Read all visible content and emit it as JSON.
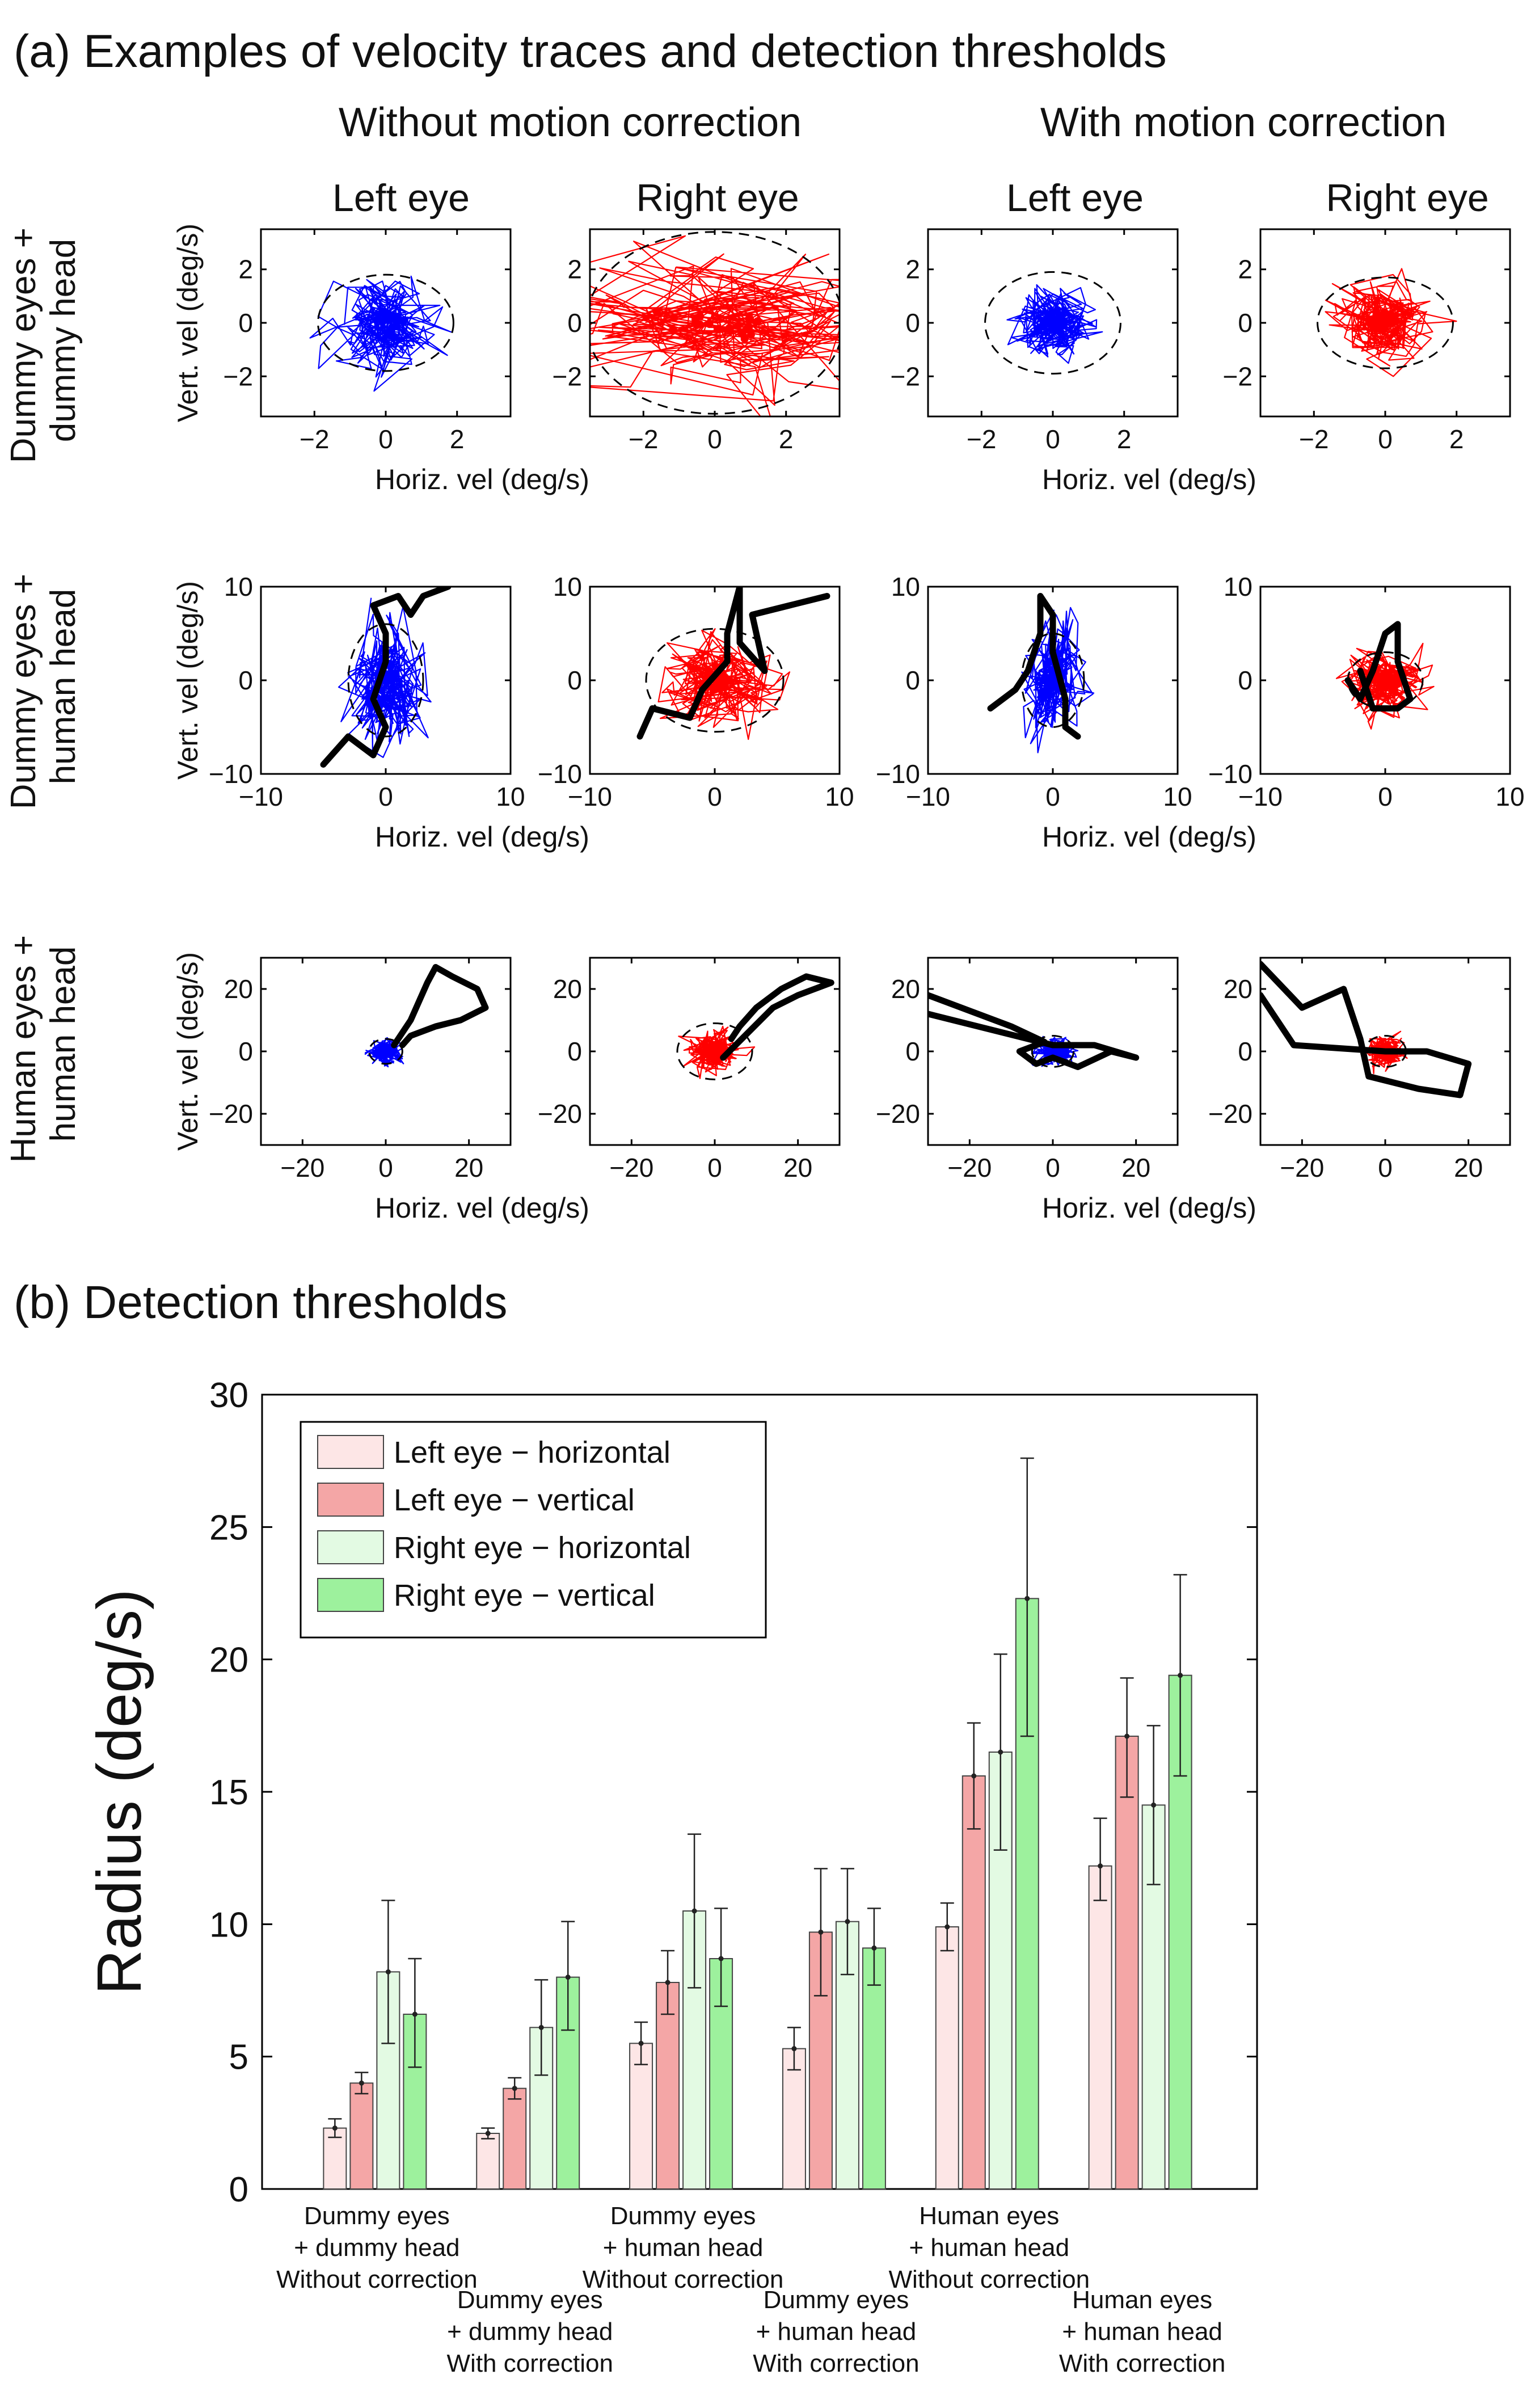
{
  "panel_a": {
    "title": "(a) Examples of velocity traces and detection thresholds",
    "column_groups": [
      "Without motion correction",
      "With motion correction"
    ],
    "eye_labels": [
      "Left eye",
      "Right eye",
      "Left eye",
      "Right eye"
    ],
    "row_labels": [
      [
        "Dummy eyes +",
        "dummy head"
      ],
      [
        "Dummy eyes +",
        "human head"
      ],
      [
        "Human eyes +",
        "human head"
      ]
    ],
    "ylabel": "Vert. vel (deg/s)",
    "xlabel": "Horiz. vel (deg/s)",
    "colors": {
      "left_eye": "#0000ff",
      "right_eye": "#ff0000",
      "head_trace": "#000000"
    }
  },
  "panel_b": {
    "title": "(b) Detection thresholds"
  },
  "chart_data": [
    {
      "type": "scatter",
      "title": "Dummy eyes + dummy head",
      "xlabel": "Horiz. vel (deg/s)",
      "ylabel": "Vert. vel (deg/s)",
      "xlim": [
        -3.5,
        3.5
      ],
      "ylim": [
        -3.5,
        3.5
      ],
      "xticks": [
        -2,
        0,
        2
      ],
      "yticks": [
        -2,
        0,
        2
      ],
      "panels": [
        {
          "group": "Without motion correction",
          "eye": "Left eye",
          "color": "#0000ff",
          "threshold_radius": [
            1.9,
            1.8
          ],
          "velocity_spread": [
            0.55,
            0.7
          ],
          "head_trace": []
        },
        {
          "group": "Without motion correction",
          "eye": "Right eye",
          "color": "#ff0000",
          "threshold_radius": [
            3.6,
            3.4
          ],
          "velocity_spread": [
            2.2,
            1.0
          ],
          "head_trace": []
        },
        {
          "group": "With motion correction",
          "eye": "Left eye",
          "color": "#0000ff",
          "threshold_radius": [
            1.9,
            1.9
          ],
          "velocity_spread": [
            0.45,
            0.55
          ],
          "head_trace": []
        },
        {
          "group": "With motion correction",
          "eye": "Right eye",
          "color": "#ff0000",
          "threshold_radius": [
            1.9,
            1.7
          ],
          "velocity_spread": [
            0.55,
            0.6
          ],
          "head_trace": []
        }
      ]
    },
    {
      "type": "scatter",
      "title": "Dummy eyes + human head",
      "xlabel": "Horiz. vel (deg/s)",
      "ylabel": "Vert. vel (deg/s)",
      "xlim": [
        -10,
        10
      ],
      "ylim": [
        -10,
        10
      ],
      "xticks": [
        -10,
        0,
        10
      ],
      "yticks": [
        -10,
        0,
        10
      ],
      "panels": [
        {
          "group": "Without motion correction",
          "eye": "Left eye",
          "color": "#0000ff",
          "threshold_radius": [
            3.0,
            6.0
          ],
          "velocity_spread": [
            1.3,
            2.6
          ],
          "head_trace": [
            [
              -5,
              -9
            ],
            [
              -3,
              -6
            ],
            [
              -1,
              -8
            ],
            [
              0,
              -5
            ],
            [
              -1,
              -2
            ],
            [
              0,
              2
            ],
            [
              0,
              5
            ],
            [
              -1,
              8
            ],
            [
              1,
              9
            ],
            [
              2,
              7
            ],
            [
              3,
              9
            ],
            [
              5,
              10
            ]
          ]
        },
        {
          "group": "Without motion correction",
          "eye": "Right eye",
          "color": "#ff0000",
          "threshold_radius": [
            5.5,
            5.5
          ],
          "velocity_spread": [
            1.8,
            1.8
          ],
          "head_trace": [
            [
              -6,
              -6
            ],
            [
              -5,
              -3
            ],
            [
              -2,
              -4
            ],
            [
              -1,
              -1
            ],
            [
              1,
              2
            ],
            [
              1,
              5
            ],
            [
              2,
              10
            ],
            [
              2,
              4
            ],
            [
              4,
              1
            ],
            [
              3,
              7
            ],
            [
              6,
              8
            ],
            [
              9,
              9
            ]
          ]
        },
        {
          "group": "With motion correction",
          "eye": "Left eye",
          "color": "#0000ff",
          "threshold_radius": [
            2.5,
            5.0
          ],
          "velocity_spread": [
            0.9,
            2.2
          ],
          "head_trace": [
            [
              -5,
              -3
            ],
            [
              -3,
              -1
            ],
            [
              -2,
              1
            ],
            [
              -1,
              5
            ],
            [
              -1,
              9
            ],
            [
              0,
              7
            ],
            [
              0,
              3
            ],
            [
              1,
              -2
            ],
            [
              1,
              -5
            ],
            [
              2,
              -6
            ]
          ]
        },
        {
          "group": "With motion correction",
          "eye": "Right eye",
          "color": "#ff0000",
          "threshold_radius": [
            3.0,
            3.0
          ],
          "velocity_spread": [
            1.3,
            1.3
          ],
          "head_trace": [
            [
              -3,
              0
            ],
            [
              -2,
              -2
            ],
            [
              -1,
              1
            ],
            [
              0,
              5
            ],
            [
              1,
              6
            ],
            [
              1,
              2
            ],
            [
              2,
              -2
            ],
            [
              1,
              -3
            ],
            [
              -1,
              -3
            ],
            [
              -2,
              1
            ]
          ]
        }
      ]
    },
    {
      "type": "scatter",
      "title": "Human eyes + human head",
      "xlabel": "Horiz. vel (deg/s)",
      "ylabel": "Vert. vel (deg/s)",
      "xlim": [
        -30,
        30
      ],
      "ylim": [
        -30,
        30
      ],
      "xticks": [
        -20,
        0,
        20
      ],
      "yticks": [
        -20,
        0,
        20
      ],
      "panels": [
        {
          "group": "Without motion correction",
          "eye": "Left eye",
          "color": "#0000ff",
          "threshold_radius": [
            4.0,
            4.0
          ],
          "velocity_spread": [
            1.6,
            1.6
          ],
          "head_trace": [
            [
              2,
              2
            ],
            [
              6,
              10
            ],
            [
              10,
              22
            ],
            [
              12,
              27
            ],
            [
              16,
              24
            ],
            [
              22,
              20
            ],
            [
              24,
              14
            ],
            [
              18,
              10
            ],
            [
              12,
              8
            ],
            [
              6,
              5
            ],
            [
              4,
              2
            ]
          ]
        },
        {
          "group": "Without motion correction",
          "eye": "Right eye",
          "color": "#ff0000",
          "threshold_radius": [
            9.0,
            9.0
          ],
          "velocity_spread": [
            2.5,
            2.5
          ],
          "head_trace": [
            [
              2,
              -2
            ],
            [
              8,
              6
            ],
            [
              14,
              14
            ],
            [
              20,
              18
            ],
            [
              28,
              22
            ],
            [
              22,
              24
            ],
            [
              16,
              20
            ],
            [
              10,
              14
            ],
            [
              6,
              8
            ],
            [
              4,
              4
            ]
          ]
        },
        {
          "group": "With motion correction",
          "eye": "Left eye",
          "color": "#0000ff",
          "threshold_radius": [
            5.0,
            5.0
          ],
          "velocity_spread": [
            1.8,
            1.8
          ],
          "head_trace": [
            [
              -30,
              18
            ],
            [
              -10,
              8
            ],
            [
              -2,
              3
            ],
            [
              -8,
              0
            ],
            [
              -4,
              -4
            ],
            [
              0,
              -2
            ],
            [
              6,
              -5
            ],
            [
              14,
              0
            ],
            [
              20,
              -2
            ],
            [
              10,
              2
            ],
            [
              0,
              2
            ],
            [
              -30,
              12
            ]
          ]
        },
        {
          "group": "With motion correction",
          "eye": "Right eye",
          "color": "#ff0000",
          "threshold_radius": [
            5.0,
            5.0
          ],
          "velocity_spread": [
            1.8,
            1.8
          ],
          "head_trace": [
            [
              -30,
              28
            ],
            [
              -20,
              14
            ],
            [
              -10,
              20
            ],
            [
              -6,
              4
            ],
            [
              -4,
              -8
            ],
            [
              8,
              -12
            ],
            [
              18,
              -14
            ],
            [
              20,
              -4
            ],
            [
              10,
              0
            ],
            [
              0,
              0
            ],
            [
              -22,
              2
            ],
            [
              -30,
              18
            ]
          ]
        }
      ]
    },
    {
      "type": "bar",
      "title": "(b) Detection thresholds",
      "ylabel": "Radius (deg/s)",
      "ylim": [
        0,
        30
      ],
      "yticks": [
        0,
        5,
        10,
        15,
        20,
        25,
        30
      ],
      "categories": [
        [
          "Dummy eyes",
          "+ dummy head",
          "Without correction"
        ],
        [
          "Dummy eyes",
          "+ dummy head",
          "With correction"
        ],
        [
          "Dummy eyes",
          "+ human head",
          "Without correction"
        ],
        [
          "Dummy eyes",
          "+ human head",
          "With correction"
        ],
        [
          "Human eyes",
          "+ human head",
          "Without correction"
        ],
        [
          "Human eyes",
          "+ human head",
          "With correction"
        ]
      ],
      "series": [
        {
          "name": "Left eye − horizontal",
          "color": "#fde6e6",
          "values": [
            2.3,
            2.1,
            5.5,
            5.3,
            9.9,
            12.2
          ],
          "err_low": [
            0.35,
            0.2,
            0.8,
            0.8,
            0.9,
            1.3
          ],
          "err_high": [
            0.35,
            0.2,
            0.8,
            0.8,
            0.9,
            1.8
          ]
        },
        {
          "name": "Left eye − vertical",
          "color": "#f4a6a6",
          "values": [
            4.0,
            3.8,
            7.8,
            9.7,
            15.6,
            17.1
          ],
          "err_low": [
            0.4,
            0.4,
            1.2,
            2.4,
            2.0,
            2.3
          ],
          "err_high": [
            0.4,
            0.4,
            1.2,
            2.4,
            2.0,
            2.2
          ]
        },
        {
          "name": "Right eye − horizontal",
          "color": "#e3fae3",
          "values": [
            8.2,
            6.1,
            10.5,
            10.1,
            16.5,
            14.5
          ],
          "err_low": [
            2.7,
            1.8,
            2.9,
            2.0,
            3.7,
            3.0
          ],
          "err_high": [
            2.7,
            1.8,
            2.9,
            2.0,
            3.7,
            3.0
          ]
        },
        {
          "name": "Right eye − vertical",
          "color": "#9df19d",
          "values": [
            6.6,
            8.0,
            8.7,
            9.1,
            22.3,
            19.4
          ],
          "err_low": [
            2.0,
            2.0,
            1.8,
            1.4,
            5.2,
            3.8
          ],
          "err_high": [
            2.1,
            2.1,
            1.9,
            1.5,
            5.3,
            3.8
          ]
        }
      ]
    }
  ]
}
